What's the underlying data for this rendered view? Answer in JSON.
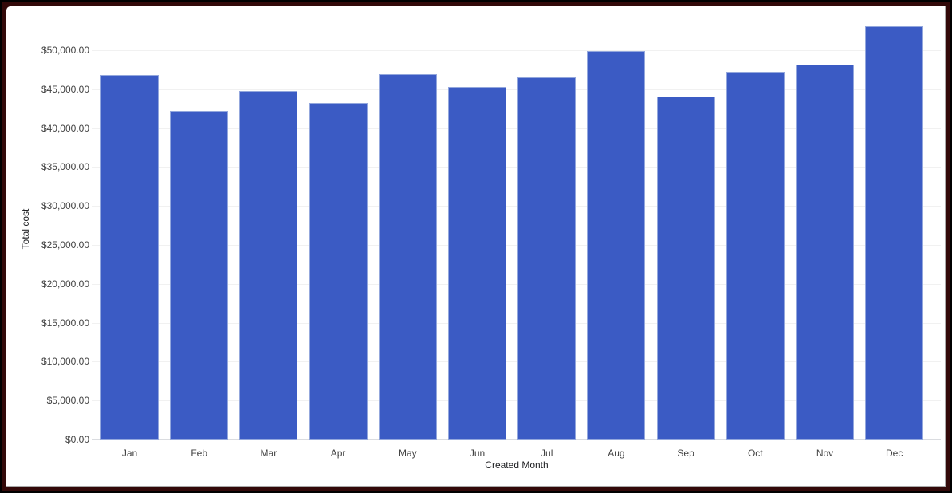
{
  "window": {
    "frame_outer_color": "#000000",
    "frame_color": "#330909",
    "canvas_background": "#ffffff"
  },
  "chart_data": {
    "type": "bar",
    "title": "",
    "xlabel": "Created Month",
    "ylabel": "Total cost",
    "categories": [
      "Jan",
      "Feb",
      "Mar",
      "Apr",
      "May",
      "Jun",
      "Jul",
      "Aug",
      "Sep",
      "Oct",
      "Nov",
      "Dec"
    ],
    "values": [
      46800,
      42200,
      44800,
      43200,
      46900,
      45300,
      46500,
      49900,
      44100,
      47200,
      48200,
      53100
    ],
    "ylim": [
      0,
      55000
    ],
    "y_tick_step": 5000,
    "y_tick_labels": [
      "$0.00",
      "$5,000.00",
      "$10,000.00",
      "$15,000.00",
      "$20,000.00",
      "$25,000.00",
      "$30,000.00",
      "$35,000.00",
      "$40,000.00",
      "$45,000.00",
      "$50,000.00"
    ],
    "grid": true,
    "legend": "none",
    "colors": {
      "bar_fill": "#3b5bc4",
      "bar_border": "#93a7dd",
      "gridline": "#f1f1f1",
      "baseline": "#dadce0",
      "tick_text": "#424242",
      "axis_title_text": "#202124"
    }
  }
}
